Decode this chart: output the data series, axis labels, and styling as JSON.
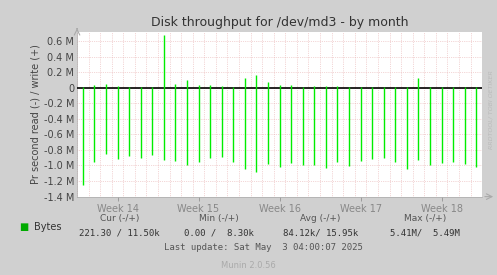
{
  "title": "Disk throughput for /dev/md3 - by month",
  "ylabel": "Pr second read (-) / write (+)",
  "xlabel_ticks": [
    "Week 14",
    "Week 15",
    "Week 16",
    "Week 17",
    "Week 18"
  ],
  "xlabel_tick_pos": [
    3.5,
    10.5,
    17.5,
    24.5,
    31.5
  ],
  "ylim": [
    -1400000.0,
    720000.0
  ],
  "yticks": [
    -1400000.0,
    -1200000.0,
    -1000000.0,
    -800000.0,
    -600000.0,
    -400000.0,
    -200000.0,
    0.0,
    200000.0,
    400000.0,
    600000.0
  ],
  "ytick_labels": [
    "-1.4 M",
    "-1.2 M",
    "-1.0 M",
    "-0.8 M",
    "-0.6 M",
    "-0.4 M",
    "-0.2 M",
    "0",
    "0.2 M",
    "0.4 M",
    "0.6 M"
  ],
  "bg_color": "#d0d0d0",
  "plot_bg_color": "#ffffff",
  "grid_color_minor": "#e8b0b0",
  "line_color": "#00ee00",
  "zero_line_color": "#000000",
  "right_label": "RRDTOOL/ TOBI OETIKER",
  "legend_label": "Bytes",
  "legend_color": "#00aa00",
  "footer_cur": "Cur (-/+)",
  "footer_min": "Min (-/+)",
  "footer_avg": "Avg (-/+)",
  "footer_max": "Max (-/+)",
  "footer_cur_val": "221.30 / 11.50k",
  "footer_min_val": "0.00 /  8.30k",
  "footer_avg_val": "84.12k/ 15.95k",
  "footer_max_val": "5.41M/  5.49M",
  "footer_last_update": "Last update: Sat May  3 04:00:07 2025",
  "footer_munin": "Munin 2.0.56",
  "spike_positions": [
    0.5,
    1.5,
    2.5,
    3.5,
    4.5,
    5.5,
    6.5,
    7.5,
    8.5,
    9.5,
    10.5,
    11.5,
    12.5,
    13.5,
    14.5,
    15.5,
    16.5,
    17.5,
    18.5,
    19.5,
    20.5,
    21.5,
    22.5,
    23.5,
    24.5,
    25.5,
    26.5,
    27.5,
    28.5,
    29.5,
    30.5,
    31.5,
    32.5,
    33.5,
    34.5
  ],
  "spike_neg_values": [
    -1250000.0,
    -950000.0,
    -850000.0,
    -920000.0,
    -880000.0,
    -900000.0,
    -870000.0,
    -930000.0,
    -940000.0,
    -1000000.0,
    -960000.0,
    -910000.0,
    -890000.0,
    -950000.0,
    -1050000.0,
    -1080000.0,
    -980000.0,
    -1020000.0,
    -970000.0,
    -1000000.0,
    -990000.0,
    -1030000.0,
    -950000.0,
    -1010000.0,
    -940000.0,
    -920000.0,
    -900000.0,
    -960000.0,
    -1040000.0,
    -930000.0,
    -1000000.0,
    -970000.0,
    -950000.0,
    -980000.0,
    -1020000.0
  ],
  "spike_pos_values": [
    10000.0,
    40000.0,
    50000.0,
    20000.0,
    10000.0,
    10000.0,
    10000.0,
    680000.0,
    50000.0,
    100000.0,
    40000.0,
    30000.0,
    20000.0,
    10000.0,
    120000.0,
    160000.0,
    70000.0,
    40000.0,
    30000.0,
    10000.0,
    20000.0,
    20000.0,
    20000.0,
    10000.0,
    10000.0,
    10000.0,
    5000.0,
    10000.0,
    5000.0,
    120000.0,
    10000.0,
    10000.0,
    10000.0,
    10000.0,
    10000.0
  ]
}
